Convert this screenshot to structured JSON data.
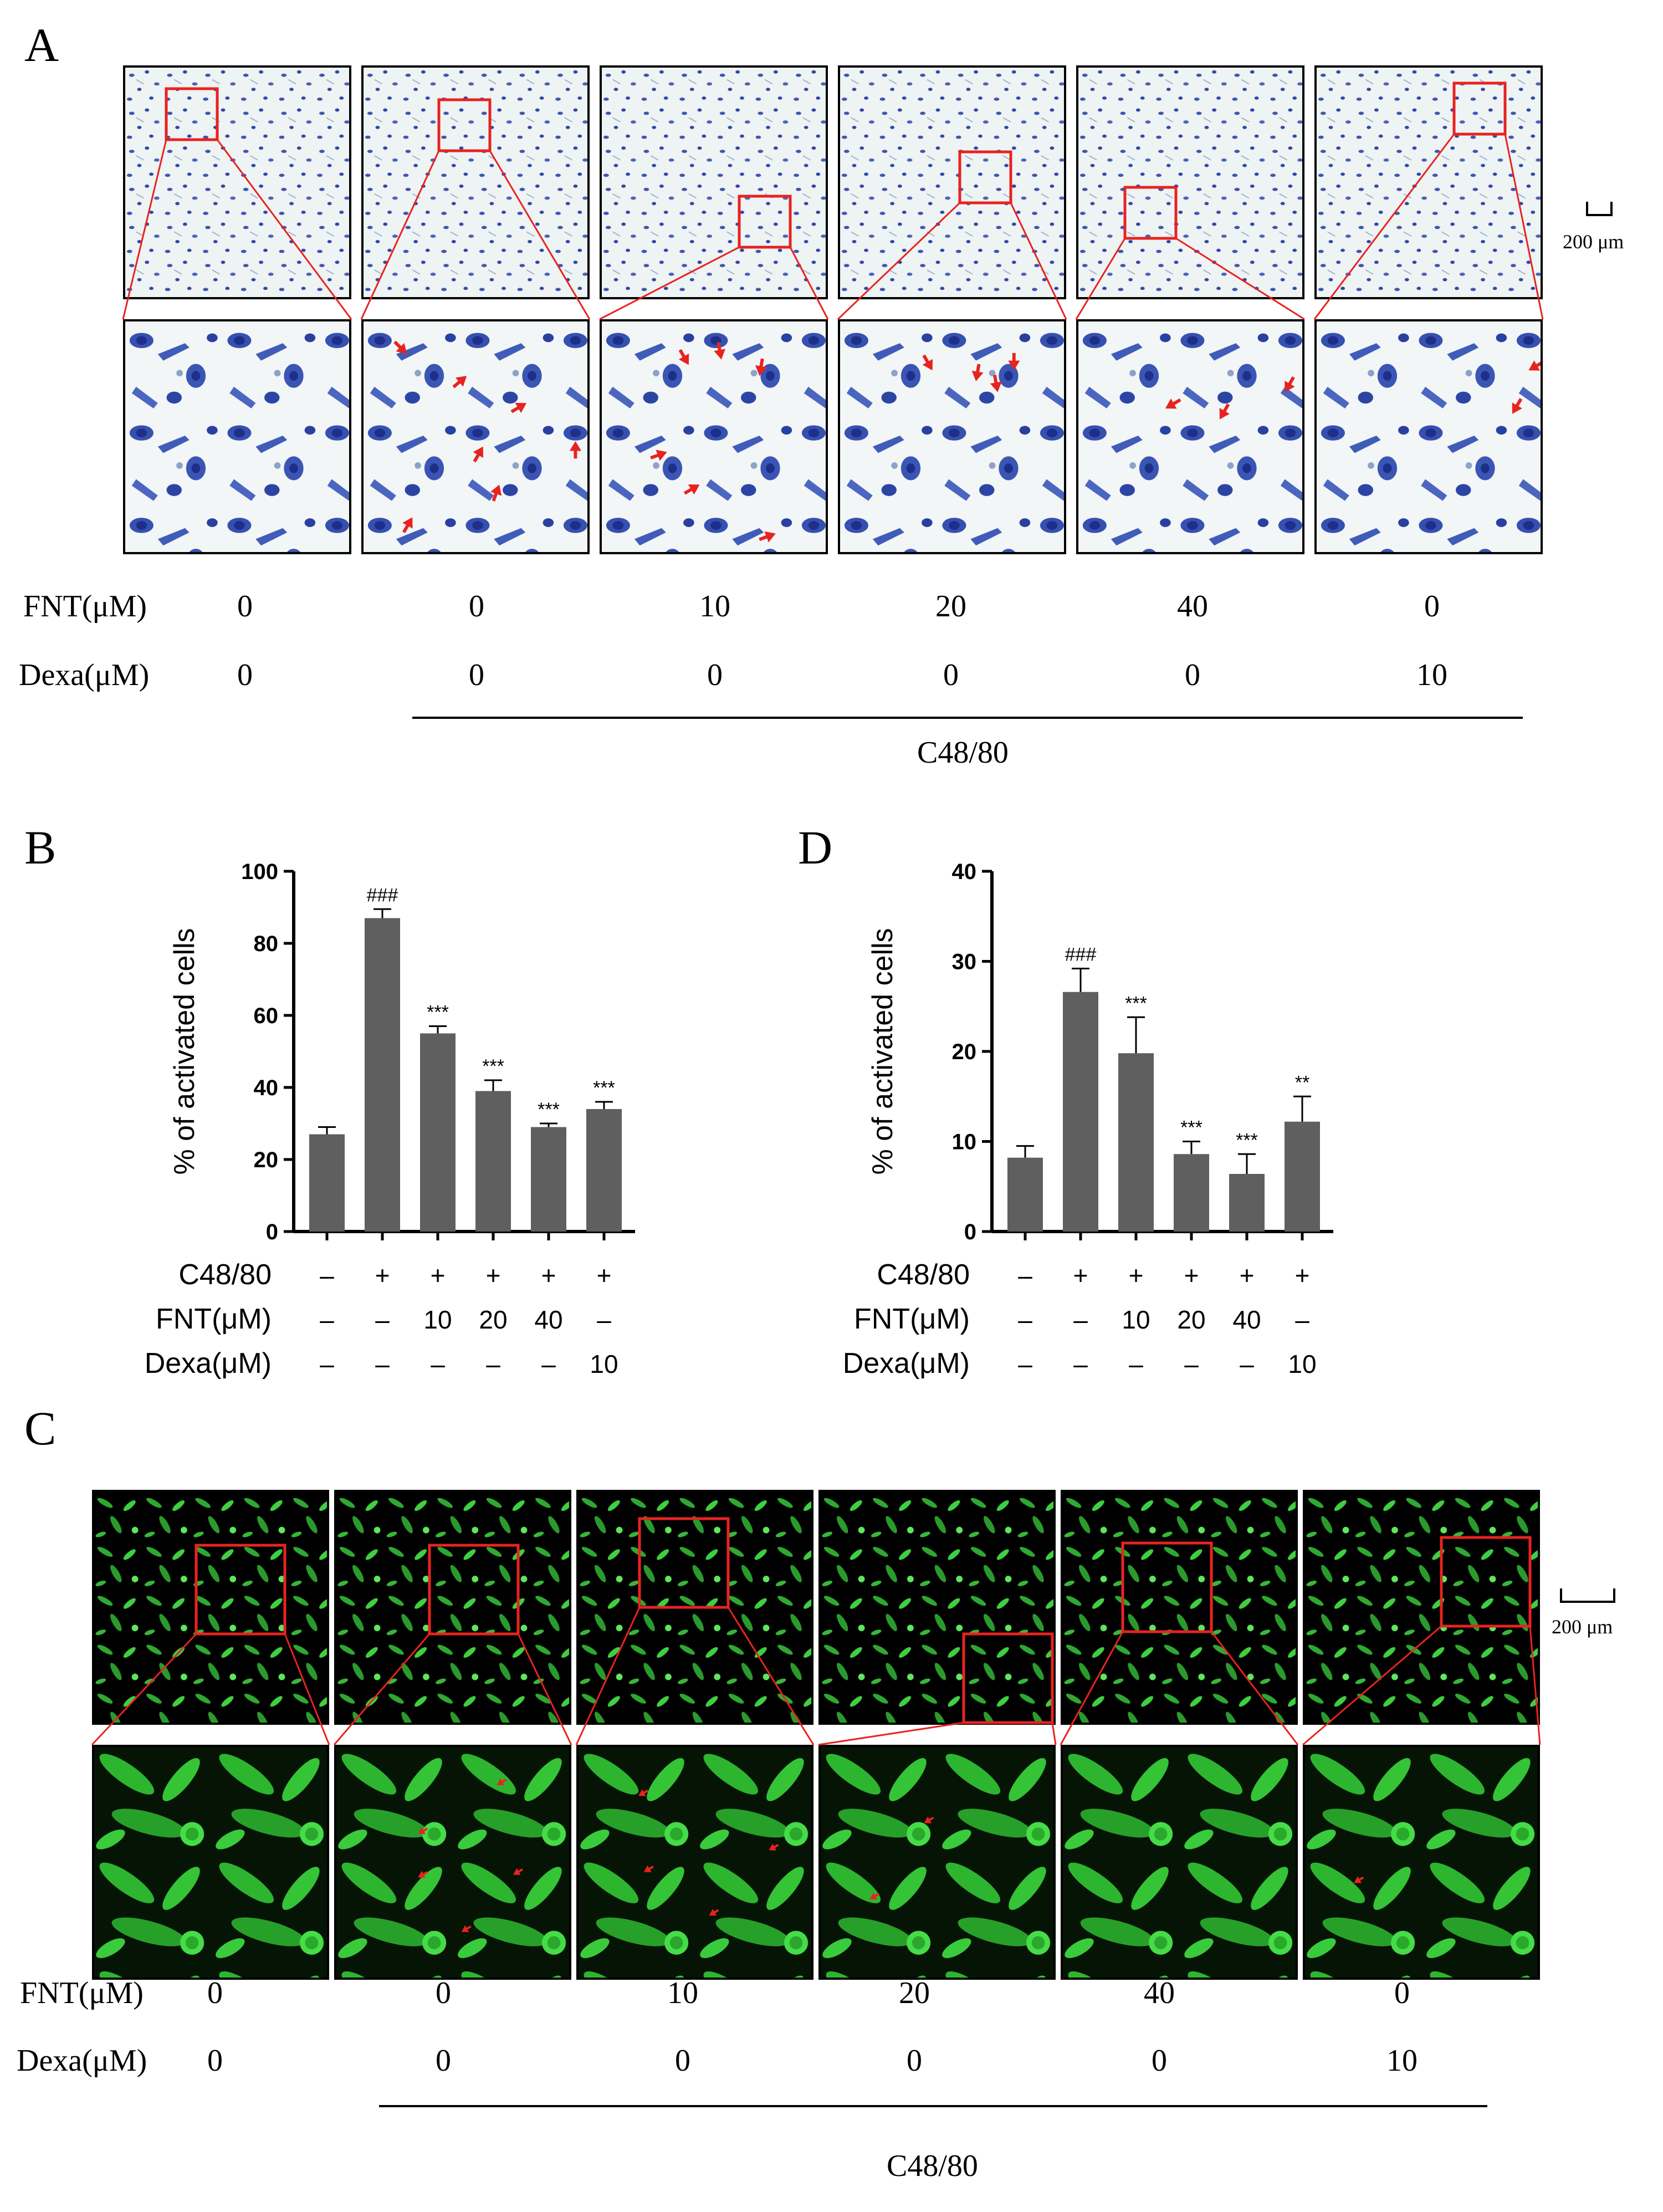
{
  "panels": {
    "a": "A",
    "b": "B",
    "c": "C",
    "d": "D"
  },
  "scale_label": "200 μm",
  "conditions": {
    "fnt_label": "FNT(μM)",
    "dexa_label": "Dexa(μM)",
    "fnt": [
      "0",
      "0",
      "10",
      "20",
      "40",
      "0"
    ],
    "dexa": [
      "0",
      "0",
      "0",
      "0",
      "0",
      "10"
    ],
    "treatment": "C48/80"
  },
  "chart_data": [
    {
      "type": "bar",
      "panel": "B",
      "ylabel": "% of activated cells",
      "ylim": [
        0,
        100
      ],
      "yticks": [
        0,
        20,
        40,
        60,
        80,
        100
      ],
      "categories": [
        "1",
        "2",
        "3",
        "4",
        "5",
        "6"
      ],
      "values": [
        27,
        87,
        55,
        39,
        29,
        34
      ],
      "errors": [
        2,
        2.5,
        2,
        3,
        1,
        2
      ],
      "annotations": [
        "",
        "###",
        "***",
        "***",
        "***",
        "***"
      ],
      "rows": [
        {
          "label": "C48/80",
          "values": [
            "–",
            "+",
            "+",
            "+",
            "+",
            "+"
          ]
        },
        {
          "label": "FNT(μM)",
          "values": [
            "–",
            "–",
            "10",
            "20",
            "40",
            "–"
          ]
        },
        {
          "label": "Dexa(μM)",
          "values": [
            "–",
            "–",
            "–",
            "–",
            "–",
            "10"
          ]
        }
      ],
      "bar_color": "#5f5f5f"
    },
    {
      "type": "bar",
      "panel": "D",
      "ylabel": "% of activated cells",
      "ylim": [
        0,
        40
      ],
      "yticks": [
        0,
        10,
        20,
        30,
        40
      ],
      "categories": [
        "1",
        "2",
        "3",
        "4",
        "5",
        "6"
      ],
      "values": [
        8.2,
        26.6,
        19.8,
        8.6,
        6.4,
        12.2
      ],
      "errors": [
        1.3,
        2.6,
        4,
        1.4,
        2.2,
        2.8
      ],
      "annotations": [
        "",
        "###",
        "***",
        "***",
        "***",
        "**"
      ],
      "rows": [
        {
          "label": "C48/80",
          "values": [
            "–",
            "+",
            "+",
            "+",
            "+",
            "+"
          ]
        },
        {
          "label": "FNT(μM)",
          "values": [
            "–",
            "–",
            "10",
            "20",
            "40",
            "–"
          ]
        },
        {
          "label": "Dexa(μM)",
          "values": [
            "–",
            "–",
            "–",
            "–",
            "–",
            "10"
          ]
        }
      ],
      "bar_color": "#5f5f5f"
    }
  ],
  "colors": {
    "highlight": "#e8231f",
    "stain_blue": "#2f46a8",
    "fluor_green": "#35d23a"
  }
}
